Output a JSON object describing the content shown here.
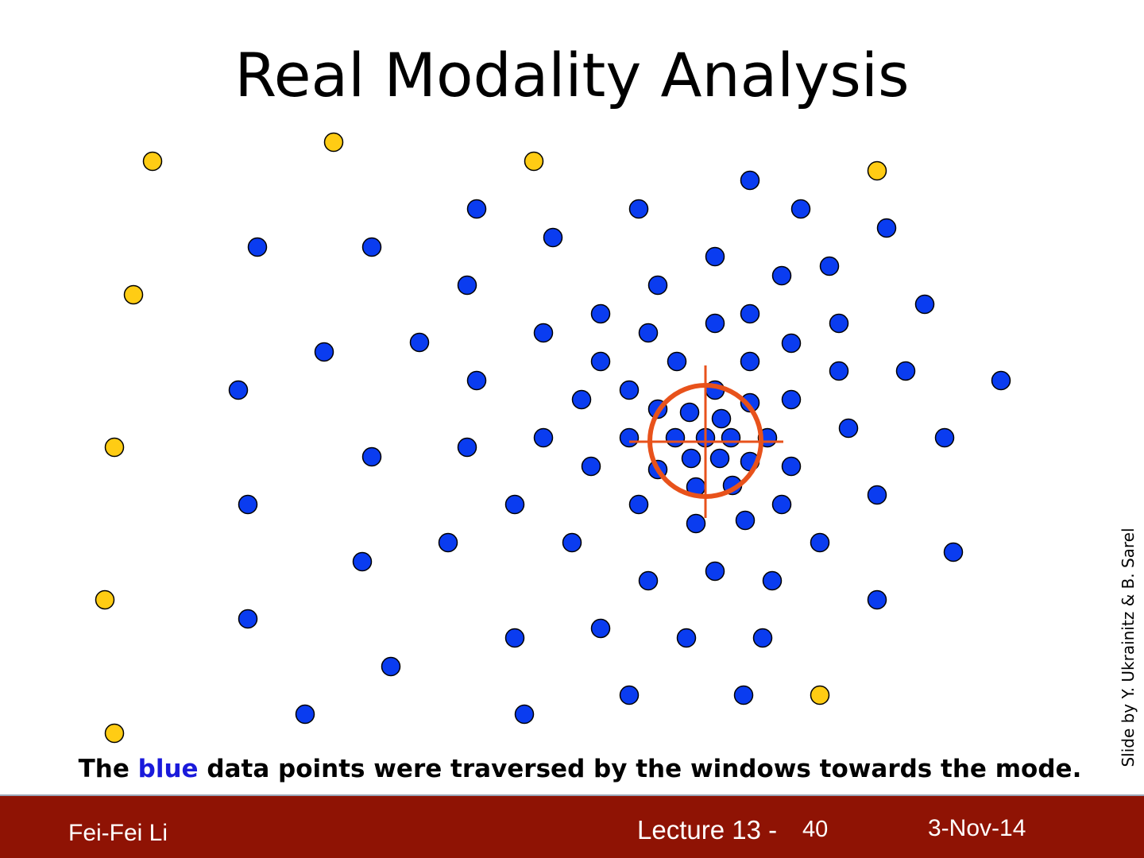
{
  "title": "Real Modality Analysis",
  "caption": {
    "before": "The",
    "highlight": "blue",
    "after": "data points were traversed by the windows towards the mode."
  },
  "credit": "Slide by Y. Ukrainitz & B. Sarel",
  "footer": {
    "author": "Fei-Fei Li",
    "lecture": "Lecture 13 -",
    "page": "40",
    "date": "3-Nov-14"
  }
}
